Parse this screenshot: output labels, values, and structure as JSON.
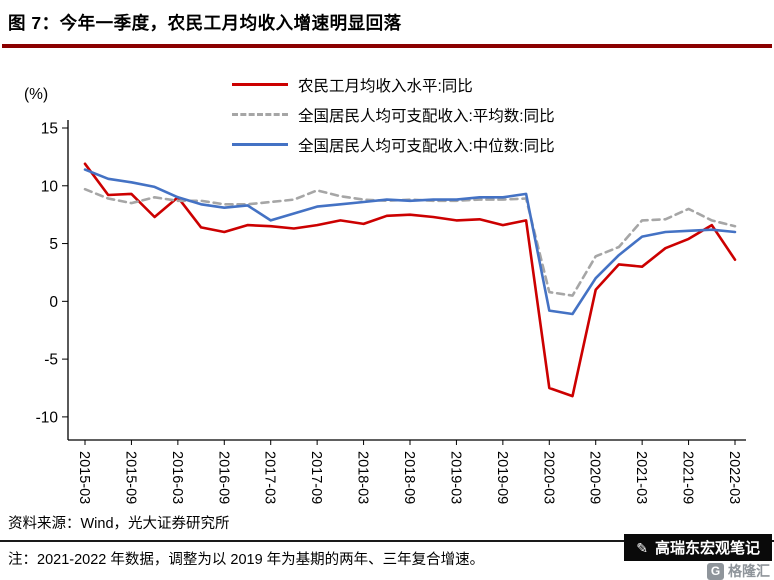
{
  "title": "图 7：今年一季度，农民工月均收入增速明显回落",
  "accent_color": "#8b0000",
  "footer": {
    "source": "资料来源：Wind，光大证券研究所",
    "note": "注：2021-2022 年数据，调整为以 2019 年为基期的两年、三年复合增速。"
  },
  "watermark": {
    "badge_text": "高瑞东宏观笔记",
    "logo_mark": "G",
    "logo_text": "格隆汇"
  },
  "chart_data": {
    "type": "line",
    "title": "",
    "xlabel": "",
    "ylabel": "(%)",
    "ylim": [
      -12,
      15
    ],
    "y_ticks": [
      15,
      10,
      5,
      0,
      -5,
      -10
    ],
    "grid": false,
    "legend_position": "top-center",
    "x_tick_every": 2,
    "categories": [
      "2015-03",
      "2015-06",
      "2015-09",
      "2015-12",
      "2016-03",
      "2016-06",
      "2016-09",
      "2016-12",
      "2017-03",
      "2017-06",
      "2017-09",
      "2017-12",
      "2018-03",
      "2018-06",
      "2018-09",
      "2018-12",
      "2019-03",
      "2019-06",
      "2019-09",
      "2019-12",
      "2020-03",
      "2020-06",
      "2020-09",
      "2020-12",
      "2021-03",
      "2021-06",
      "2021-09",
      "2021-12",
      "2022-03"
    ],
    "series": [
      {
        "name": "农民工月均收入水平:同比",
        "color": "#cc0000",
        "dash": "",
        "values": [
          11.9,
          9.2,
          9.3,
          7.3,
          9.0,
          6.4,
          6.0,
          6.6,
          6.5,
          6.3,
          6.6,
          7.0,
          6.7,
          7.4,
          7.5,
          7.3,
          7.0,
          7.1,
          6.6,
          7.0,
          -7.5,
          -8.2,
          1.0,
          3.2,
          3.0,
          4.6,
          5.4,
          6.6,
          3.6
        ]
      },
      {
        "name": "全国居民人均可支配收入:平均数:同比",
        "color": "#a6a6a6",
        "dash": "7 5",
        "values": [
          9.7,
          8.9,
          8.5,
          9.0,
          8.7,
          8.7,
          8.4,
          8.4,
          8.6,
          8.8,
          9.6,
          9.1,
          8.8,
          8.7,
          8.8,
          8.7,
          8.7,
          8.8,
          8.8,
          8.9,
          0.8,
          0.5,
          3.9,
          4.7,
          7.0,
          7.1,
          8.0,
          7.0,
          6.5
        ]
      },
      {
        "name": "全国居民人均可支配收入:中位数:同比",
        "color": "#4472c4",
        "dash": "",
        "values": [
          11.4,
          10.6,
          10.3,
          9.9,
          9.0,
          8.4,
          8.1,
          8.3,
          7.0,
          7.6,
          8.2,
          8.4,
          8.6,
          8.8,
          8.7,
          8.8,
          8.8,
          9.0,
          9.0,
          9.3,
          -0.8,
          -1.1,
          2.0,
          4.0,
          5.6,
          6.0,
          6.1,
          6.2,
          6.0
        ]
      }
    ]
  }
}
